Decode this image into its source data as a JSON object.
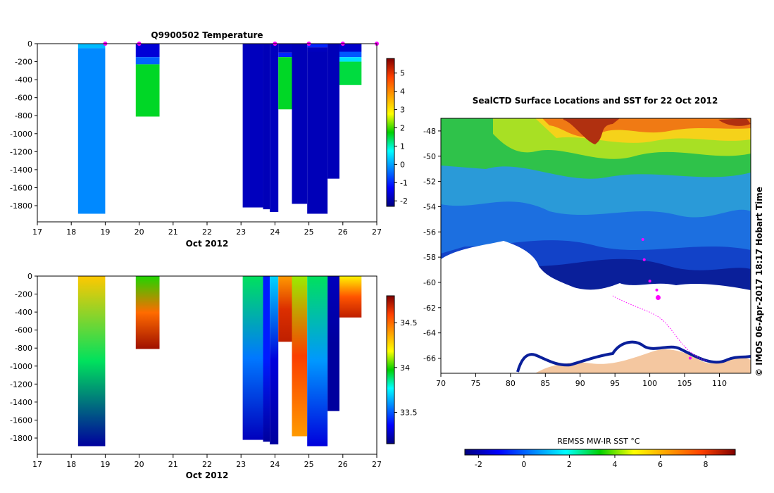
{
  "chart_data": [
    {
      "type": "heatmap",
      "title": "Q9900502  Temperature",
      "xlabel": "Oct 2012",
      "x_ticks": [
        "17",
        "18",
        "19",
        "20",
        "21",
        "22",
        "23",
        "24",
        "25",
        "26",
        "27"
      ],
      "xlim": [
        17,
        27
      ],
      "y_ticks": [
        "0",
        "-200",
        "-400",
        "-600",
        "-800",
        "-1000",
        "-1200",
        "-1400",
        "-1600",
        "-1800"
      ],
      "ylim": [
        -1980,
        0
      ],
      "colorbar": {
        "ticks": [
          "-2",
          "-1",
          "0",
          "1",
          "2",
          "3",
          "4",
          "5"
        ],
        "min": -2.3,
        "max": 5.8
      },
      "profiles": [
        {
          "x0": 18.2,
          "x1": 19.0,
          "depth": -1890,
          "segments": [
            {
              "top": 0,
              "bottom": -50,
              "value": 0.2
            },
            {
              "top": -50,
              "bottom": -1890,
              "value": -0.2
            }
          ]
        },
        {
          "x0": 19.9,
          "x1": 20.6,
          "depth": -810,
          "segments": [
            {
              "top": 0,
              "bottom": -150,
              "value": -1.6
            },
            {
              "top": -150,
              "bottom": -230,
              "value": -0.5
            },
            {
              "top": -230,
              "bottom": -810,
              "value": 1.6
            }
          ]
        },
        {
          "x0": 23.05,
          "x1": 23.65,
          "depth": -1820,
          "segments": [
            {
              "top": 0,
              "bottom": -1820,
              "value": -1.8
            }
          ]
        },
        {
          "x0": 23.65,
          "x1": 23.85,
          "depth": -1840,
          "segments": [
            {
              "top": 0,
              "bottom": -1840,
              "value": -1.85
            }
          ]
        },
        {
          "x0": 23.85,
          "x1": 24.1,
          "depth": -1870,
          "segments": [
            {
              "top": 0,
              "bottom": -1870,
              "value": -1.8
            }
          ]
        },
        {
          "x0": 24.1,
          "x1": 24.5,
          "depth": -730,
          "segments": [
            {
              "top": 0,
              "bottom": -100,
              "value": -1.8
            },
            {
              "top": -100,
              "bottom": -150,
              "value": -1.0
            },
            {
              "top": -150,
              "bottom": -730,
              "value": 1.6
            }
          ]
        },
        {
          "x0": 24.5,
          "x1": 24.95,
          "depth": -1780,
          "segments": [
            {
              "top": 0,
              "bottom": -1780,
              "value": -1.85
            }
          ]
        },
        {
          "x0": 24.95,
          "x1": 25.55,
          "depth": -1890,
          "segments": [
            {
              "top": 0,
              "bottom": -40,
              "value": -1.0
            },
            {
              "top": -40,
              "bottom": -90,
              "value": -1.8
            },
            {
              "top": -90,
              "bottom": -1890,
              "value": -1.85
            }
          ]
        },
        {
          "x0": 25.55,
          "x1": 25.9,
          "depth": -1500,
          "segments": [
            {
              "top": 0,
              "bottom": -1500,
              "value": -1.85
            }
          ]
        },
        {
          "x0": 25.9,
          "x1": 26.55,
          "depth": -460,
          "segments": [
            {
              "top": 0,
              "bottom": -90,
              "value": -1.7
            },
            {
              "top": -90,
              "bottom": -150,
              "value": -0.6
            },
            {
              "top": -150,
              "bottom": -200,
              "value": 0.5
            },
            {
              "top": -200,
              "bottom": -460,
              "value": 1.5
            }
          ]
        }
      ],
      "markers_x": [
        19.0,
        20.0,
        24.0,
        25.0,
        26.0,
        27.0
      ]
    },
    {
      "type": "heatmap",
      "title": "",
      "xlabel": "Oct 2012",
      "x_ticks": [
        "17",
        "18",
        "19",
        "20",
        "21",
        "22",
        "23",
        "24",
        "25",
        "26",
        "27"
      ],
      "xlim": [
        17,
        27
      ],
      "y_ticks": [
        "0",
        "-200",
        "-400",
        "-600",
        "-800",
        "-1000",
        "-1200",
        "-1400",
        "-1600",
        "-1800"
      ],
      "ylim": [
        -1980,
        0
      ],
      "colorbar": {
        "ticks": [
          "33.5",
          "34",
          "34.5"
        ],
        "min": 33.15,
        "max": 34.8
      },
      "profiles": [
        {
          "x0": 18.2,
          "x1": 19.0,
          "depth": -1890,
          "value_top": 34.3,
          "value_mid": 33.9,
          "value_bottom": 33.2
        },
        {
          "x0": 19.9,
          "x1": 20.6,
          "depth": -810,
          "value_top": 34.0,
          "value_mid": 34.5,
          "value_bottom": 34.75
        },
        {
          "x0": 23.05,
          "x1": 23.65,
          "depth": -1820,
          "value_top": 33.9,
          "value_mid": 33.55,
          "value_bottom": 33.25
        },
        {
          "x0": 23.65,
          "x1": 23.85,
          "depth": -1840,
          "value_top": 33.4,
          "value_mid": 33.4,
          "value_bottom": 33.2
        },
        {
          "x0": 23.85,
          "x1": 24.1,
          "depth": -1870,
          "value_top": 33.7,
          "value_mid": 33.3,
          "value_bottom": 33.2
        },
        {
          "x0": 24.1,
          "x1": 24.5,
          "depth": -730,
          "value_top": 34.4,
          "value_mid": 34.65,
          "value_bottom": 34.7
        },
        {
          "x0": 24.5,
          "x1": 24.95,
          "depth": -1780,
          "value_top": 34.1,
          "value_mid": 34.6,
          "value_bottom": 34.4
        },
        {
          "x0": 24.95,
          "x1": 25.55,
          "depth": -1890,
          "value_top": 33.9,
          "value_mid": 33.6,
          "value_bottom": 33.3
        },
        {
          "x0": 25.55,
          "x1": 25.9,
          "depth": -1500,
          "value_top": 33.25,
          "value_mid": 33.2,
          "value_bottom": 33.2
        },
        {
          "x0": 25.9,
          "x1": 26.55,
          "depth": -460,
          "value_top": 34.2,
          "value_mid": 34.55,
          "value_bottom": 34.7
        }
      ]
    },
    {
      "type": "heatmap",
      "title": "SealCTD Surface Locations and SST for 22 Oct 2012",
      "xlabel": "",
      "ylabel": "",
      "x_ticks": [
        "70",
        "75",
        "80",
        "85",
        "90",
        "95",
        "100",
        "105",
        "110"
      ],
      "xlim": [
        70,
        114.5
      ],
      "y_ticks": [
        "-48",
        "-50",
        "-52",
        "-54",
        "-56",
        "-58",
        "-60",
        "-62",
        "-64",
        "-66"
      ],
      "ylim": [
        -67.2,
        -47.0
      ],
      "colorbar_label": "REMSS MW-IR SST °C",
      "colorbar": {
        "ticks": [
          "-2",
          "0",
          "2",
          "4",
          "6",
          "8"
        ],
        "min": -2.6,
        "max": 9.3
      },
      "side_note": "© IMOS 06-Apr-2017 18:17 Hobart Time",
      "colors": {
        "land": "#f4c7a0",
        "ice": "#ffffff",
        "track": "#ff00ff"
      },
      "seal_positions": [
        {
          "lon": 101.2,
          "lat": -61.2
        },
        {
          "lon": 101.0,
          "lat": -60.6
        },
        {
          "lon": 100.0,
          "lat": -59.9
        },
        {
          "lon": 99.2,
          "lat": -58.2
        },
        {
          "lon": 99.0,
          "lat": -56.6
        },
        {
          "lon": 105.8,
          "lat": -66.0
        }
      ]
    }
  ]
}
